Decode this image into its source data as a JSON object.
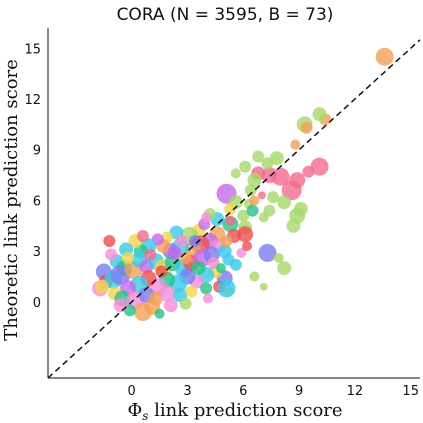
{
  "chart_data": {
    "type": "scatter",
    "title": "CORA (N = 3595, B = 73)",
    "xlabel_symbol": "Φ",
    "xlabel_subscript": "s",
    "xlabel_rest": " link prediction score",
    "ylabel": "Theoretic link prediction score",
    "xlim": [
      -4.5,
      15.5
    ],
    "ylim": [
      -4.5,
      16.2
    ],
    "xticks": [
      "0",
      "3",
      "6",
      "9",
      "12",
      "15"
    ],
    "yticks": [
      "0",
      "3",
      "6",
      "9",
      "12",
      "15"
    ],
    "reference_line": "y = x (dashed)",
    "marker_style": "bubbles sized by cluster, semi-transparent",
    "palette": [
      "#f58fd9",
      "#7a7cf0",
      "#3ac9e8",
      "#22c48a",
      "#f2a05a",
      "#ef4f4f",
      "#a8d86a",
      "#f3d64d",
      "#f26b8f",
      "#c46ae8"
    ],
    "points": [
      {
        "x": 13.6,
        "y": 14.5,
        "s": 9,
        "c": "#f2a05a"
      },
      {
        "x": 10.4,
        "y": 10.8,
        "s": 6,
        "c": "#f2a05a"
      },
      {
        "x": 10.1,
        "y": 11.1,
        "s": 7,
        "c": "#a8d86a"
      },
      {
        "x": 9.3,
        "y": 10.5,
        "s": 8,
        "c": "#a8d86a"
      },
      {
        "x": 9.4,
        "y": 10.3,
        "s": 6,
        "c": "#f2a05a"
      },
      {
        "x": 8.8,
        "y": 9.3,
        "s": 5,
        "c": "#f2a05a"
      },
      {
        "x": 10.1,
        "y": 8.0,
        "s": 9,
        "c": "#f26b8f"
      },
      {
        "x": 9.5,
        "y": 7.7,
        "s": 6,
        "c": "#f26b8f"
      },
      {
        "x": 8.9,
        "y": 7.2,
        "s": 8,
        "c": "#f26b8f"
      },
      {
        "x": 8.6,
        "y": 6.6,
        "s": 10,
        "c": "#f26b8f"
      },
      {
        "x": 8.0,
        "y": 7.4,
        "s": 9,
        "c": "#f26b8f"
      },
      {
        "x": 7.4,
        "y": 7.5,
        "s": 8,
        "c": "#f26b8f"
      },
      {
        "x": 6.8,
        "y": 7.6,
        "s": 7,
        "c": "#f26b8f"
      },
      {
        "x": 7.3,
        "y": 8.2,
        "s": 6,
        "c": "#a8d86a"
      },
      {
        "x": 7.8,
        "y": 8.5,
        "s": 7,
        "c": "#a8d86a"
      },
      {
        "x": 6.8,
        "y": 8.6,
        "s": 6,
        "c": "#a8d86a"
      },
      {
        "x": 6.1,
        "y": 8.0,
        "s": 6,
        "c": "#a8d86a"
      },
      {
        "x": 5.6,
        "y": 7.6,
        "s": 5,
        "c": "#a8d86a"
      },
      {
        "x": 6.6,
        "y": 7.2,
        "s": 7,
        "c": "#a8d86a"
      },
      {
        "x": 6.4,
        "y": 6.6,
        "s": 6,
        "c": "#a8d86a"
      },
      {
        "x": 7.6,
        "y": 6.2,
        "s": 6,
        "c": "#a8d86a"
      },
      {
        "x": 8.2,
        "y": 5.9,
        "s": 7,
        "c": "#a8d86a"
      },
      {
        "x": 8.9,
        "y": 5.1,
        "s": 8,
        "c": "#a8d86a"
      },
      {
        "x": 9.1,
        "y": 5.5,
        "s": 7,
        "c": "#a8d86a"
      },
      {
        "x": 8.7,
        "y": 4.5,
        "s": 7,
        "c": "#a8d86a"
      },
      {
        "x": 7.4,
        "y": 5.4,
        "s": 6,
        "c": "#a8d86a"
      },
      {
        "x": 6.3,
        "y": 5.8,
        "s": 5,
        "c": "#a8d86a"
      },
      {
        "x": 5.1,
        "y": 6.4,
        "s": 10,
        "c": "#c46ae8"
      },
      {
        "x": 5.6,
        "y": 5.9,
        "s": 7,
        "c": "#a8d86a"
      },
      {
        "x": 5.3,
        "y": 5.5,
        "s": 6,
        "c": "#f3d64d"
      },
      {
        "x": 6.0,
        "y": 5.1,
        "s": 6,
        "c": "#a8d86a"
      },
      {
        "x": 6.1,
        "y": 4.4,
        "s": 7,
        "c": "#a8d86a"
      },
      {
        "x": 7.1,
        "y": 5.0,
        "s": 5,
        "c": "#a8d86a"
      },
      {
        "x": 5.3,
        "y": 4.6,
        "s": 8,
        "c": "#22c48a"
      },
      {
        "x": 4.6,
        "y": 4.9,
        "s": 7,
        "c": "#3ac9e8"
      },
      {
        "x": 4.2,
        "y": 5.2,
        "s": 6,
        "c": "#a8d86a"
      },
      {
        "x": 4.6,
        "y": 4.0,
        "s": 8,
        "c": "#f2a05a"
      },
      {
        "x": 5.5,
        "y": 3.9,
        "s": 7,
        "c": "#ef4f4f"
      },
      {
        "x": 5.3,
        "y": 4.8,
        "s": 5,
        "c": "#f26b8f"
      },
      {
        "x": 4.2,
        "y": 3.6,
        "s": 8,
        "c": "#c46ae8"
      },
      {
        "x": 3.6,
        "y": 4.2,
        "s": 7,
        "c": "#f3d64d"
      },
      {
        "x": 3.1,
        "y": 3.9,
        "s": 9,
        "c": "#a8d86a"
      },
      {
        "x": 2.4,
        "y": 4.1,
        "s": 7,
        "c": "#3ac9e8"
      },
      {
        "x": 1.9,
        "y": 3.8,
        "s": 6,
        "c": "#f3d64d"
      },
      {
        "x": 4.7,
        "y": 3.3,
        "s": 7,
        "c": "#f58fd9"
      },
      {
        "x": 3.7,
        "y": 3.4,
        "s": 9,
        "c": "#ef4f4f"
      },
      {
        "x": 3.3,
        "y": 3.1,
        "s": 8,
        "c": "#f2a05a"
      },
      {
        "x": 2.6,
        "y": 3.2,
        "s": 9,
        "c": "#3ac9e8"
      },
      {
        "x": 2.1,
        "y": 3.0,
        "s": 8,
        "c": "#7a7cf0"
      },
      {
        "x": 1.7,
        "y": 3.3,
        "s": 7,
        "c": "#f2a05a"
      },
      {
        "x": 1.4,
        "y": 3.7,
        "s": 6,
        "c": "#c46ae8"
      },
      {
        "x": 0.9,
        "y": 3.3,
        "s": 8,
        "c": "#3ac9e8"
      },
      {
        "x": 0.5,
        "y": 3.0,
        "s": 7,
        "c": "#22c48a"
      },
      {
        "x": 0.2,
        "y": 3.6,
        "s": 7,
        "c": "#f3d64d"
      },
      {
        "x": -0.3,
        "y": 3.1,
        "s": 7,
        "c": "#3ac9e8"
      },
      {
        "x": -1.2,
        "y": 3.6,
        "s": 6,
        "c": "#ef4f4f"
      },
      {
        "x": -0.8,
        "y": 2.4,
        "s": 7,
        "c": "#3ac9e8"
      },
      {
        "x": -0.4,
        "y": 2.0,
        "s": 8,
        "c": "#22c48a"
      },
      {
        "x": -1.5,
        "y": 1.8,
        "s": 8,
        "c": "#7a7cf0"
      },
      {
        "x": -1.4,
        "y": 1.2,
        "s": 7,
        "c": "#ef4f4f"
      },
      {
        "x": -1.7,
        "y": 0.8,
        "s": 8,
        "c": "#f58fd9"
      },
      {
        "x": -1.0,
        "y": 1.3,
        "s": 9,
        "c": "#3ac9e8"
      },
      {
        "x": -0.6,
        "y": 1.6,
        "s": 10,
        "c": "#7a7cf0"
      },
      {
        "x": 0.1,
        "y": 1.9,
        "s": 9,
        "c": "#f2a05a"
      },
      {
        "x": 0.4,
        "y": 2.5,
        "s": 8,
        "c": "#3ac9e8"
      },
      {
        "x": 0.8,
        "y": 2.1,
        "s": 7,
        "c": "#c46ae8"
      },
      {
        "x": 1.3,
        "y": 2.4,
        "s": 8,
        "c": "#3ac9e8"
      },
      {
        "x": 1.7,
        "y": 2.0,
        "s": 9,
        "c": "#f3d64d"
      },
      {
        "x": 2.2,
        "y": 2.3,
        "s": 8,
        "c": "#22c48a"
      },
      {
        "x": 2.8,
        "y": 2.0,
        "s": 9,
        "c": "#3ac9e8"
      },
      {
        "x": 3.2,
        "y": 2.3,
        "s": 8,
        "c": "#ef4f4f"
      },
      {
        "x": 3.8,
        "y": 2.6,
        "s": 9,
        "c": "#c46ae8"
      },
      {
        "x": 4.3,
        "y": 2.8,
        "s": 8,
        "c": "#7a7cf0"
      },
      {
        "x": 5.0,
        "y": 3.0,
        "s": 7,
        "c": "#3ac9e8"
      },
      {
        "x": 5.9,
        "y": 2.9,
        "s": 5,
        "c": "#f58fd9"
      },
      {
        "x": 6.2,
        "y": 3.3,
        "s": 5,
        "c": "#ef4f4f"
      },
      {
        "x": 7.3,
        "y": 2.9,
        "s": 9,
        "c": "#7a7cf0"
      },
      {
        "x": 8.2,
        "y": 2.0,
        "s": 7,
        "c": "#a8d86a"
      },
      {
        "x": 6.6,
        "y": 1.5,
        "s": 5,
        "c": "#a8d86a"
      },
      {
        "x": 5.6,
        "y": 2.2,
        "s": 6,
        "c": "#3ac9e8"
      },
      {
        "x": 5.0,
        "y": 1.4,
        "s": 8,
        "c": "#7a7cf0"
      },
      {
        "x": 4.5,
        "y": 1.8,
        "s": 7,
        "c": "#f3d64d"
      },
      {
        "x": 4.0,
        "y": 1.6,
        "s": 8,
        "c": "#3ac9e8"
      },
      {
        "x": 3.5,
        "y": 1.2,
        "s": 7,
        "c": "#f58fd9"
      },
      {
        "x": 3.0,
        "y": 1.5,
        "s": 8,
        "c": "#7a7cf0"
      },
      {
        "x": 2.5,
        "y": 1.1,
        "s": 9,
        "c": "#3ac9e8"
      },
      {
        "x": 1.9,
        "y": 1.3,
        "s": 8,
        "c": "#22c48a"
      },
      {
        "x": 1.4,
        "y": 0.9,
        "s": 9,
        "c": "#f58fd9"
      },
      {
        "x": 0.9,
        "y": 1.4,
        "s": 8,
        "c": "#ef4f4f"
      },
      {
        "x": 0.4,
        "y": 1.0,
        "s": 9,
        "c": "#3ac9e8"
      },
      {
        "x": -0.2,
        "y": 0.8,
        "s": 8,
        "c": "#c46ae8"
      },
      {
        "x": -0.9,
        "y": 0.5,
        "s": 7,
        "c": "#f3d64d"
      },
      {
        "x": -0.5,
        "y": 0.2,
        "s": 8,
        "c": "#22c48a"
      },
      {
        "x": 0.2,
        "y": 0.1,
        "s": 9,
        "c": "#f58fd9"
      },
      {
        "x": 0.8,
        "y": 0.4,
        "s": 8,
        "c": "#7a7cf0"
      },
      {
        "x": 1.3,
        "y": 0.2,
        "s": 7,
        "c": "#f2a05a"
      },
      {
        "x": 1.9,
        "y": 0.5,
        "s": 8,
        "c": "#f58fd9"
      },
      {
        "x": 2.6,
        "y": 0.4,
        "s": 7,
        "c": "#3ac9e8"
      },
      {
        "x": 3.2,
        "y": 0.6,
        "s": 6,
        "c": "#f3d64d"
      },
      {
        "x": 4.0,
        "y": 0.8,
        "s": 6,
        "c": "#22c48a"
      },
      {
        "x": 4.7,
        "y": 0.9,
        "s": 6,
        "c": "#ef4f4f"
      },
      {
        "x": 5.2,
        "y": 0.6,
        "s": 5,
        "c": "#f3d64d"
      },
      {
        "x": 4.1,
        "y": 0.2,
        "s": 5,
        "c": "#f58fd9"
      },
      {
        "x": 5.1,
        "y": 0.8,
        "s": 9,
        "c": "#3ac9e8"
      },
      {
        "x": 2.9,
        "y": -0.1,
        "s": 6,
        "c": "#a8d86a"
      },
      {
        "x": 2.1,
        "y": -0.2,
        "s": 7,
        "c": "#f58fd9"
      },
      {
        "x": 1.1,
        "y": -0.3,
        "s": 8,
        "c": "#f2a05a"
      },
      {
        "x": 0.6,
        "y": -0.6,
        "s": 9,
        "c": "#f2a05a"
      },
      {
        "x": -0.1,
        "y": -0.5,
        "s": 6,
        "c": "#22c48a"
      },
      {
        "x": -0.6,
        "y": -0.2,
        "s": 7,
        "c": "#f58fd9"
      },
      {
        "x": -1.6,
        "y": 0.9,
        "s": 7,
        "c": "#f3d64d"
      },
      {
        "x": 1.6,
        "y": 1.8,
        "s": 6,
        "c": "#ef4f4f"
      },
      {
        "x": 2.3,
        "y": 2.9,
        "s": 7,
        "c": "#c46ae8"
      },
      {
        "x": 2.9,
        "y": 2.6,
        "s": 6,
        "c": "#f2a05a"
      },
      {
        "x": 3.6,
        "y": 2.0,
        "s": 7,
        "c": "#22c48a"
      },
      {
        "x": 4.4,
        "y": 2.3,
        "s": 6,
        "c": "#f58fd9"
      },
      {
        "x": 5.2,
        "y": 2.5,
        "s": 6,
        "c": "#3ac9e8"
      },
      {
        "x": 1.0,
        "y": 2.8,
        "s": 6,
        "c": "#f26b8f"
      },
      {
        "x": -0.2,
        "y": 2.6,
        "s": 6,
        "c": "#f3d64d"
      },
      {
        "x": 6.1,
        "y": 4.0,
        "s": 8,
        "c": "#ef4f4f"
      },
      {
        "x": 5.1,
        "y": 3.6,
        "s": 6,
        "c": "#f2a05a"
      },
      {
        "x": 3.9,
        "y": 4.6,
        "s": 6,
        "c": "#c46ae8"
      },
      {
        "x": 4.0,
        "y": 5.0,
        "s": 5,
        "c": "#f58fd9"
      },
      {
        "x": 6.5,
        "y": 5.4,
        "s": 6,
        "c": "#22c48a"
      },
      {
        "x": 6.6,
        "y": 6.0,
        "s": 5,
        "c": "#f2a05a"
      },
      {
        "x": 7.0,
        "y": 6.3,
        "s": 4,
        "c": "#f26b8f"
      },
      {
        "x": 7.9,
        "y": 2.6,
        "s": 5,
        "c": "#a8d86a"
      },
      {
        "x": 7.1,
        "y": 0.9,
        "s": 4,
        "c": "#a8d86a"
      },
      {
        "x": 1.5,
        "y": -0.7,
        "s": 5,
        "c": "#22c48a"
      },
      {
        "x": 3.4,
        "y": 3.6,
        "s": 6,
        "c": "#7a7cf0"
      },
      {
        "x": 2.7,
        "y": 3.6,
        "s": 6,
        "c": "#f58fd9"
      },
      {
        "x": 0.6,
        "y": 3.9,
        "s": 6,
        "c": "#f26b8f"
      },
      {
        "x": -1.1,
        "y": 2.8,
        "s": 6,
        "c": "#f58fd9"
      },
      {
        "x": 4.8,
        "y": 2.0,
        "s": 5,
        "c": "#22c48a"
      }
    ]
  }
}
